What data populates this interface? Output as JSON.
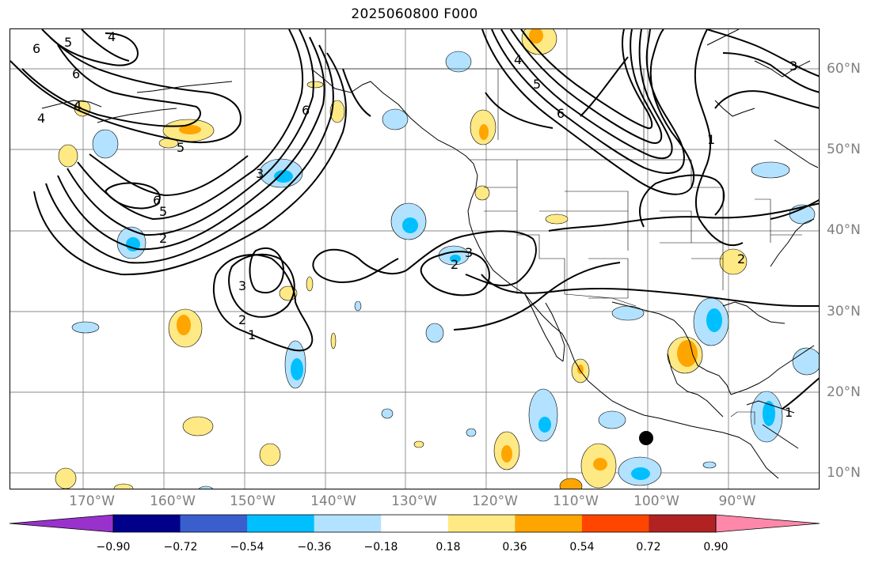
{
  "title": "2025060800 F000",
  "longitude_labels": [
    "170°W",
    "160°W",
    "150°W",
    "140°W",
    "130°W",
    "120°W",
    "110°W",
    "100°W",
    "90°W"
  ],
  "latitude_labels": [
    "60°N",
    "50°N",
    "40°N",
    "30°N",
    "20°N",
    "10°N"
  ],
  "contour_labels": [
    "6",
    "5",
    "4",
    "3",
    "2",
    "1"
  ],
  "colorbar": {
    "ticks": [
      "−0.90",
      "−0.72",
      "−0.54",
      "−0.36",
      "−0.18",
      "0.18",
      "0.36",
      "0.54",
      "0.72",
      "0.90"
    ],
    "colors": [
      "#9932cc",
      "#00008b",
      "#3a5fcd",
      "#00bfff",
      "#b2e2ff",
      "#ffffff",
      "#ffe984",
      "#ffa500",
      "#ff4500",
      "#b22222",
      "#ff88aa"
    ]
  },
  "fill_colors": {
    "neg_light": "#b2e2ff",
    "neg_mid": "#00bfff",
    "pos_light": "#ffe984",
    "pos_mid": "#ffa500"
  },
  "marker": "filled-circle"
}
